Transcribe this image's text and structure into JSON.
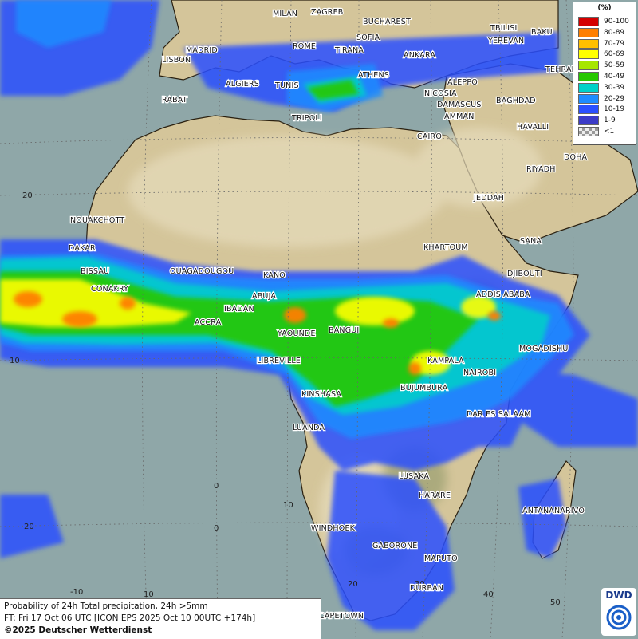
{
  "map": {
    "cities": [
      "MILAN",
      "ZAGREB",
      "BUCHAREST",
      "TBILISI",
      "BAKU",
      "SOFIA",
      "YEREVAN",
      "MADRID",
      "ROME",
      "TIRANA",
      "ANKARA",
      "TEHRAN",
      "LISBON",
      "ATHENS",
      "ALGIERS",
      "TUNIS",
      "ALEPPO",
      "RABAT",
      "NICOSIA",
      "BAGHDAD",
      "TRIPOLI",
      "DAMASCUS",
      "AMMAN",
      "HAVALLI",
      "CAIRO",
      "DOHA",
      "RIYADH",
      "JEDDAH",
      "NOUAKCHOTT",
      "DAKAR",
      "KHARTOUM",
      "SANA",
      "BISSAU",
      "OUAGADOUGOU",
      "KANO",
      "DJIBOUTI",
      "CONAKRY",
      "ABUJA",
      "ADDIS ABABA",
      "IBADAN",
      "ACCRA",
      "YAOUNDE",
      "BANGUI",
      "MOGADISHU",
      "LIBREVILLE",
      "KAMPALA",
      "NAIROBI",
      "KINSHASA",
      "BUJUMBURA",
      "DAR ES SALAAM",
      "LUANDA",
      "LUSAKA",
      "HARARE",
      "ANTANANARIVO",
      "WINDHOEK",
      "GABORONE",
      "MAPUTO",
      "DURBAN",
      "CAPETOWN"
    ],
    "grid_labels": [
      "20",
      "10",
      "0",
      "10",
      "20",
      "-10",
      "0",
      "10",
      "20",
      "30",
      "40",
      "50"
    ]
  },
  "legend": {
    "title": "(%)",
    "items": [
      {
        "label": "90-100",
        "color": "#d40000"
      },
      {
        "label": "80-89",
        "color": "#ff7f00"
      },
      {
        "label": "70-79",
        "color": "#ffbf00"
      },
      {
        "label": "60-69",
        "color": "#ffff00"
      },
      {
        "label": "50-59",
        "color": "#a6e600"
      },
      {
        "label": "40-49",
        "color": "#26c800"
      },
      {
        "label": "30-39",
        "color": "#00d2c8"
      },
      {
        "label": "20-29",
        "color": "#1e8cff"
      },
      {
        "label": "10-19",
        "color": "#2a50ff"
      },
      {
        "label": "1-9",
        "color": "#3c3cc8"
      },
      {
        "label": "<1",
        "color": "#c8c8c8"
      }
    ]
  },
  "info": {
    "line1": "Probability of 24h Total precipitation, 24h >5mm",
    "line2": "FT: Fri 17 Oct 06 UTC [ICON EPS 2025 Oct 10 00UTC +174h]",
    "line3": "©2025 Deutscher Wetterdienst"
  },
  "logo": {
    "text": "DWD"
  }
}
